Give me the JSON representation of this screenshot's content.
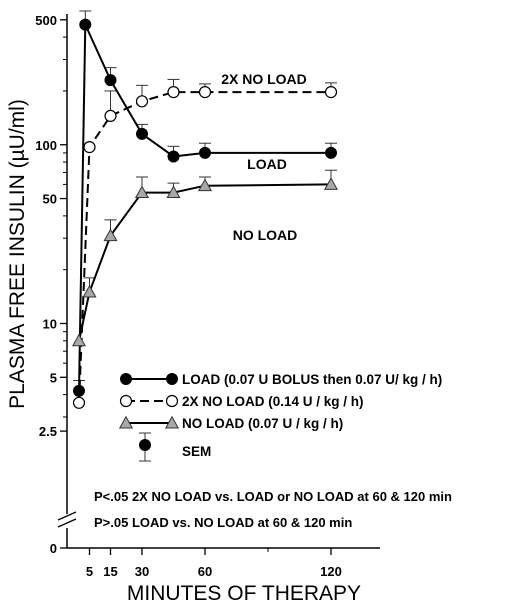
{
  "chart_data": {
    "type": "line",
    "xlabel": "MINUTES OF THERAPY",
    "ylabel": "PLASMA FREE INSULIN (µU/ml)",
    "yscale": "log",
    "ylim": [
      2.5,
      500
    ],
    "xlim": [
      0,
      145
    ],
    "axis_break": true,
    "x_ticks": [
      5,
      15,
      30,
      60,
      120
    ],
    "y_ticks": [
      {
        "value": 500,
        "label": "500"
      },
      {
        "value": 100,
        "label": "100"
      },
      {
        "value": 50,
        "label": "50"
      },
      {
        "value": 10,
        "label": "10"
      },
      {
        "value": 5,
        "label": "5"
      },
      {
        "value": 2.5,
        "label": "2.5"
      },
      {
        "value": 0,
        "label": "0"
      }
    ],
    "series": [
      {
        "name": "LOAD",
        "label": "LOAD",
        "marker": "filled-circle",
        "line": "solid",
        "points": [
          {
            "x": 0,
            "y": 4.2,
            "err": 0.6
          },
          {
            "x": 3,
            "y": 470,
            "err": 90
          },
          {
            "x": 15,
            "y": 230,
            "err": 40
          },
          {
            "x": 30,
            "y": 115,
            "err": 15
          },
          {
            "x": 45,
            "y": 86,
            "err": 12
          },
          {
            "x": 60,
            "y": 90,
            "err": 12
          },
          {
            "x": 120,
            "y": 90,
            "err": 12
          }
        ]
      },
      {
        "name": "2X NO LOAD",
        "label": "2X NO LOAD",
        "marker": "open-circle",
        "line": "dashed",
        "points": [
          {
            "x": 0,
            "y": 3.6,
            "err": 0
          },
          {
            "x": 5,
            "y": 97,
            "err": 0
          },
          {
            "x": 15,
            "y": 145,
            "err": 55
          },
          {
            "x": 30,
            "y": 175,
            "err": 40
          },
          {
            "x": 45,
            "y": 197,
            "err": 35
          },
          {
            "x": 60,
            "y": 197,
            "err": 22
          },
          {
            "x": 120,
            "y": 197,
            "err": 25
          }
        ]
      },
      {
        "name": "NO LOAD",
        "label": "NO LOAD",
        "marker": "gray-triangle",
        "line": "solid",
        "points": [
          {
            "x": 0,
            "y": 8,
            "err": 0
          },
          {
            "x": 5,
            "y": 15,
            "err": 3
          },
          {
            "x": 15,
            "y": 31,
            "err": 7
          },
          {
            "x": 30,
            "y": 54,
            "err": 12
          },
          {
            "x": 45,
            "y": 54,
            "err": 7
          },
          {
            "x": 60,
            "y": 59,
            "err": 7
          },
          {
            "x": 120,
            "y": 60,
            "err": 12
          }
        ]
      }
    ],
    "legend": {
      "position": "lower-right",
      "items": [
        {
          "marker": "filled-circle",
          "line": "solid",
          "text": "LOAD (0.07 U BOLUS then 0.07 U/ kg / h)"
        },
        {
          "marker": "open-circle",
          "line": "dashed",
          "text": "2X NO LOAD (0.14 U / kg / h)"
        },
        {
          "marker": "gray-triangle",
          "line": "solid",
          "text": "NO LOAD (0.07 U / kg / h)"
        },
        {
          "marker": "filled-circle-errorbar",
          "line": "none",
          "text": "SEM"
        }
      ]
    },
    "annotations": [
      "P<.05 2X NO LOAD vs. LOAD or NO LOAD at 60 & 120 min",
      "P>.05 LOAD vs. NO LOAD at 60 & 120 min"
    ]
  }
}
